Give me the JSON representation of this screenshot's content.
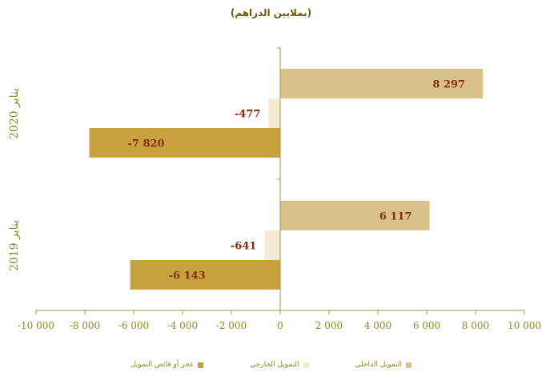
{
  "chart_data": {
    "type": "bar",
    "orientation": "horizontal",
    "title": "(بملايين الدراهم)",
    "groups": [
      "يناير 2020",
      "يناير 2019"
    ],
    "series": [
      {
        "name": "التمويل الداخلي",
        "color": "#d9c28a",
        "values": [
          8297,
          6117
        ],
        "labels": [
          "8 297",
          "6 117"
        ]
      },
      {
        "name": "التمويل الخارجي",
        "color": "#f3ead6",
        "values": [
          -477,
          -641
        ],
        "labels": [
          "-477",
          "-641"
        ]
      },
      {
        "name": "عجز أو فائض التمويل",
        "color": "#c7a13e",
        "values": [
          -7820,
          -6143
        ],
        "labels": [
          "-7 820",
          "-6 143"
        ]
      }
    ],
    "xlim": [
      -10000,
      10000
    ],
    "xticks": [
      -10000,
      -8000,
      -6000,
      -4000,
      -2000,
      0,
      2000,
      4000,
      6000,
      8000,
      10000
    ],
    "xtick_labels": [
      "-10 000",
      "-8 000",
      "-6 000",
      "-4 000",
      "-2 000",
      "0",
      "2 000",
      "4 000",
      "6 000",
      "8 000",
      "10 000"
    ],
    "legend_position": "bottom",
    "grid": false
  }
}
